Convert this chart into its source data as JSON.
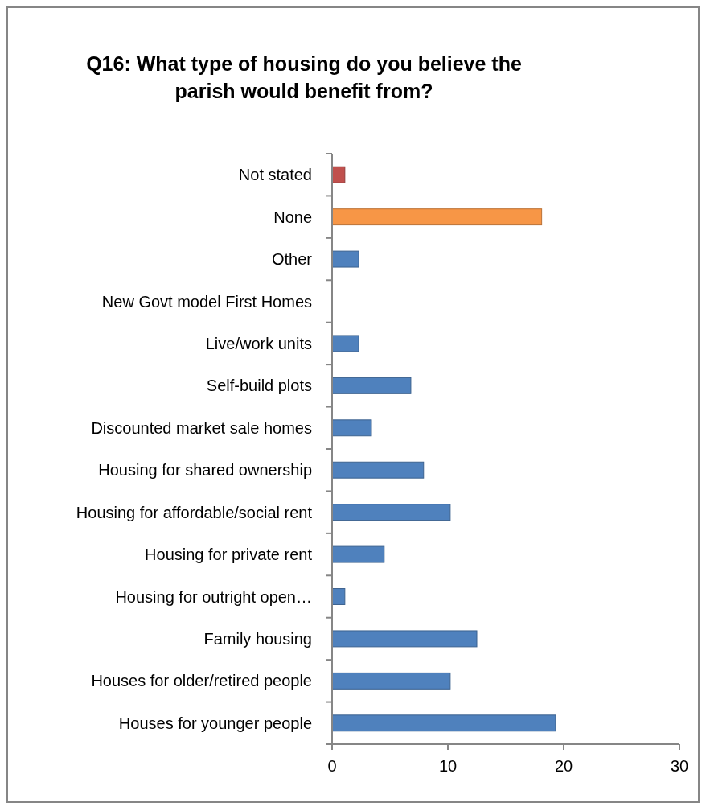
{
  "chart_data": {
    "type": "bar",
    "orientation": "horizontal",
    "title": "Q16: What type of housing do you believe the parish would benefit from?",
    "categories": [
      "Not stated",
      "None",
      "Other",
      "New Govt model First Homes",
      "Live/work units",
      "Self-build plots",
      "Discounted market sale homes",
      "Housing for shared ownership",
      "Housing for affordable/social rent",
      "Housing for private rent",
      "Housing for outright open…",
      "Family housing",
      "Houses for older/retired people",
      "Houses for younger people"
    ],
    "values": [
      1.1,
      18.1,
      2.3,
      0,
      2.3,
      6.8,
      3.4,
      7.9,
      10.2,
      4.5,
      1.1,
      12.5,
      10.2,
      19.3
    ],
    "colors": [
      "#c0504d",
      "#f79646",
      "#4f81bd",
      "#4f81bd",
      "#4f81bd",
      "#4f81bd",
      "#4f81bd",
      "#4f81bd",
      "#4f81bd",
      "#4f81bd",
      "#4f81bd",
      "#4f81bd",
      "#4f81bd",
      "#4f81bd"
    ],
    "xlim": [
      0,
      30
    ],
    "xticks": [
      0,
      10,
      20,
      30
    ],
    "grid": false
  }
}
